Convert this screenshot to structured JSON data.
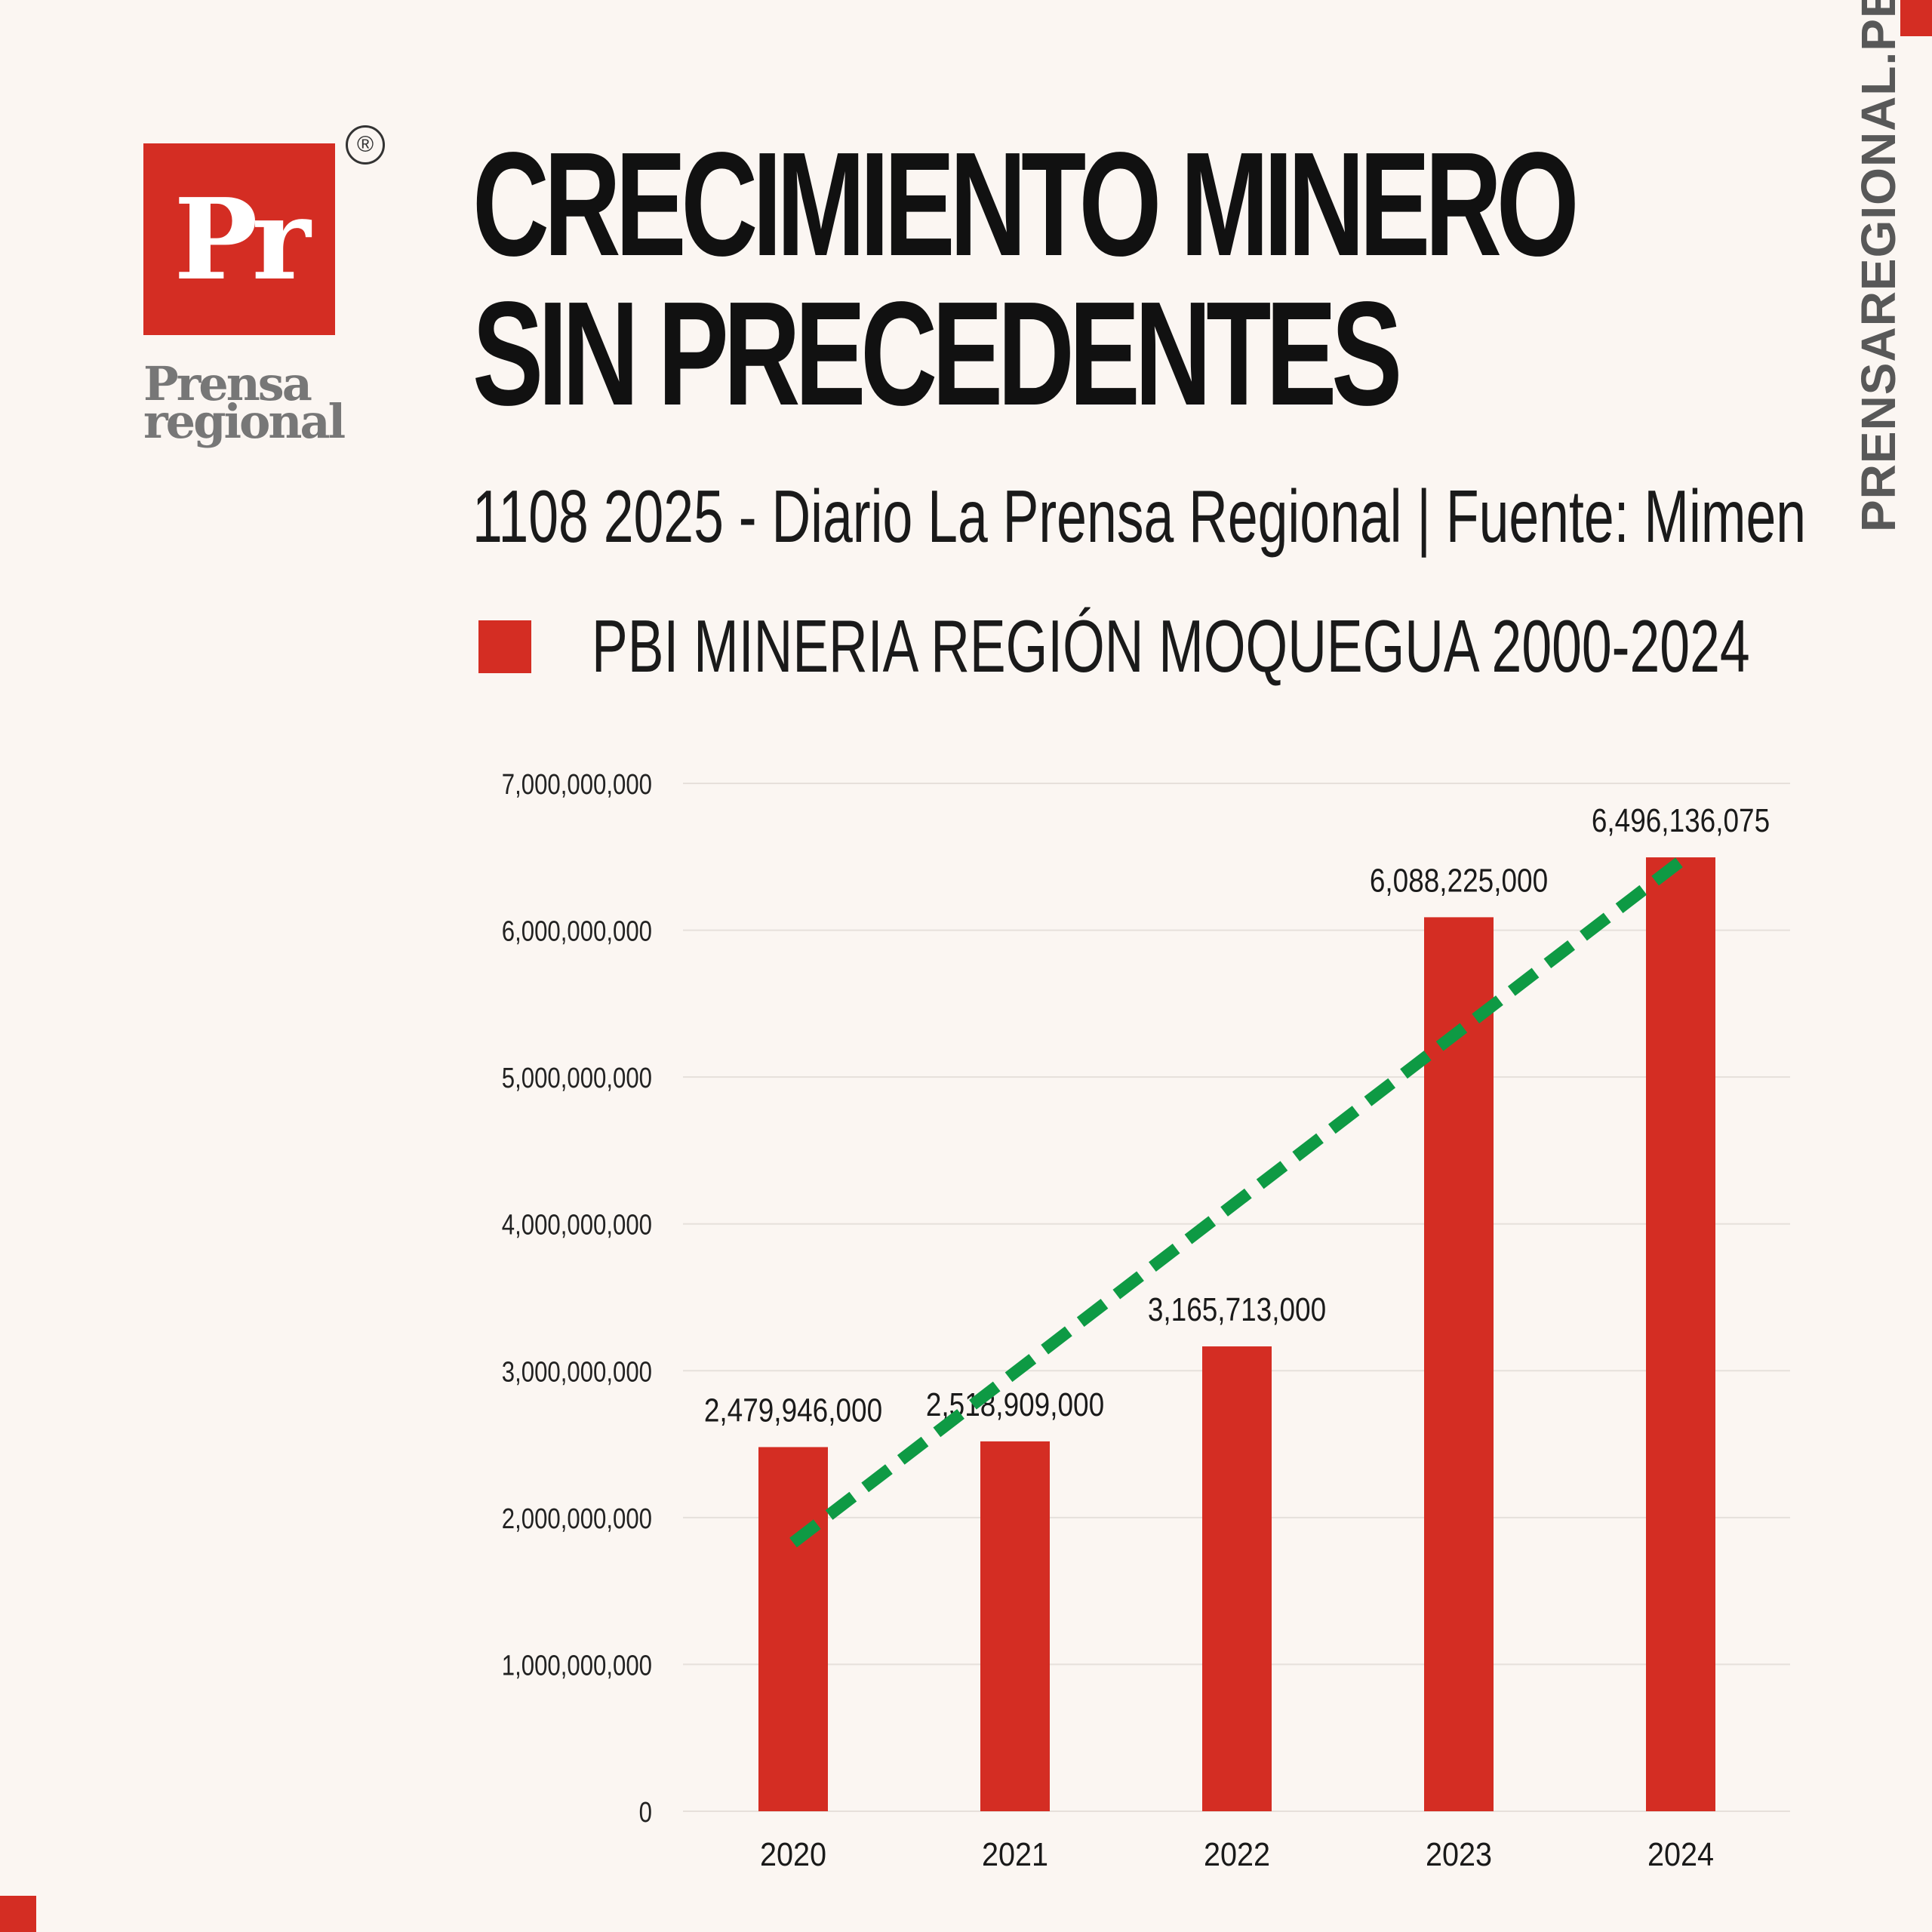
{
  "brand": {
    "logo_mark": "Pr",
    "logo_word_1": "Prensa",
    "logo_word_2": "regional",
    "registered": "®",
    "site": "PRENSAREGIONAL.PE"
  },
  "header": {
    "title_line_1": "CRECIMIENTO MINERO",
    "title_line_2": "SIN PRECEDENTES",
    "subtitle": "1108 2025 - Diario La Prensa Regional | Fuente: Mimen"
  },
  "colors": {
    "bar": "#d42d23",
    "trend": "#0e9a44",
    "accent": "#d42d23"
  },
  "chart_data": {
    "type": "bar",
    "categories": [
      "2020",
      "2021",
      "2022",
      "2023",
      "2024"
    ],
    "series": [
      {
        "name": "PBI MINERIA REGIÓN MOQUEGUA 2000-2024",
        "values": [
          2479946000,
          2518909000,
          3165713000,
          6088225000,
          6496136075
        ],
        "labels": [
          "2,479,946,000",
          "2,518,909,000",
          "3,165,713,000",
          "6,088,225,000",
          "6,496,136,075"
        ]
      }
    ],
    "trendline": {
      "type": "linear",
      "style": "dashed"
    },
    "ylim": [
      0,
      7000000000
    ],
    "yticks": [
      0,
      1000000000,
      2000000000,
      3000000000,
      4000000000,
      5000000000,
      6000000000,
      7000000000
    ],
    "ytick_labels": [
      "0",
      "1,000,000,000",
      "2,000,000,000",
      "3,000,000,000",
      "4,000,000,000",
      "5,000,000,000",
      "6,000,000,000",
      "7,000,000,000"
    ],
    "grid": true,
    "legend": "top-left"
  }
}
